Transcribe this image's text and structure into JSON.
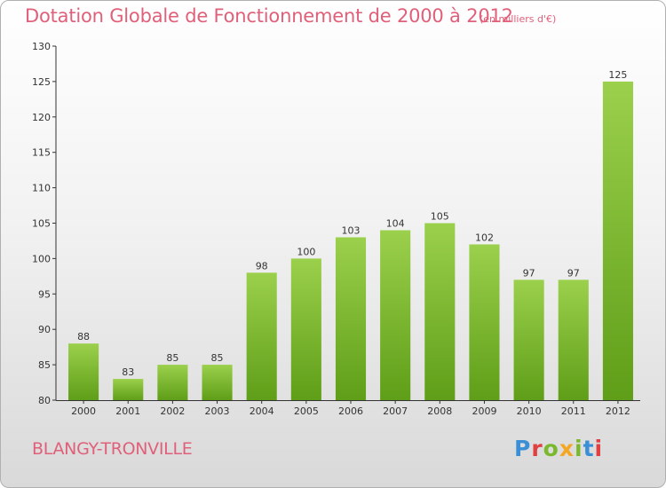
{
  "chart_data": {
    "type": "bar",
    "title": "Dotation Globale de Fonctionnement de 2000 à 2012",
    "subtitle": "(en milliers d'€)",
    "categories": [
      "2000",
      "2001",
      "2002",
      "2003",
      "2004",
      "2005",
      "2006",
      "2007",
      "2008",
      "2009",
      "2010",
      "2011",
      "2012"
    ],
    "values": [
      88,
      83,
      85,
      85,
      98,
      100,
      103,
      104,
      105,
      102,
      97,
      97,
      125
    ],
    "ylim": [
      80,
      130
    ],
    "yticks": [
      80,
      85,
      90,
      95,
      100,
      105,
      110,
      115,
      120,
      125,
      130
    ],
    "xlabel": "",
    "ylabel": "",
    "grid": false,
    "bar_color": "#7ab82e"
  },
  "footer": {
    "place_name": "BLANGY-TRONVILLE",
    "logo_text": "Proxiti"
  },
  "colors": {
    "title": "#e0607a",
    "logo": [
      "#f5a623",
      "#7ab82e",
      "#3a8fd6",
      "#e04040"
    ]
  }
}
